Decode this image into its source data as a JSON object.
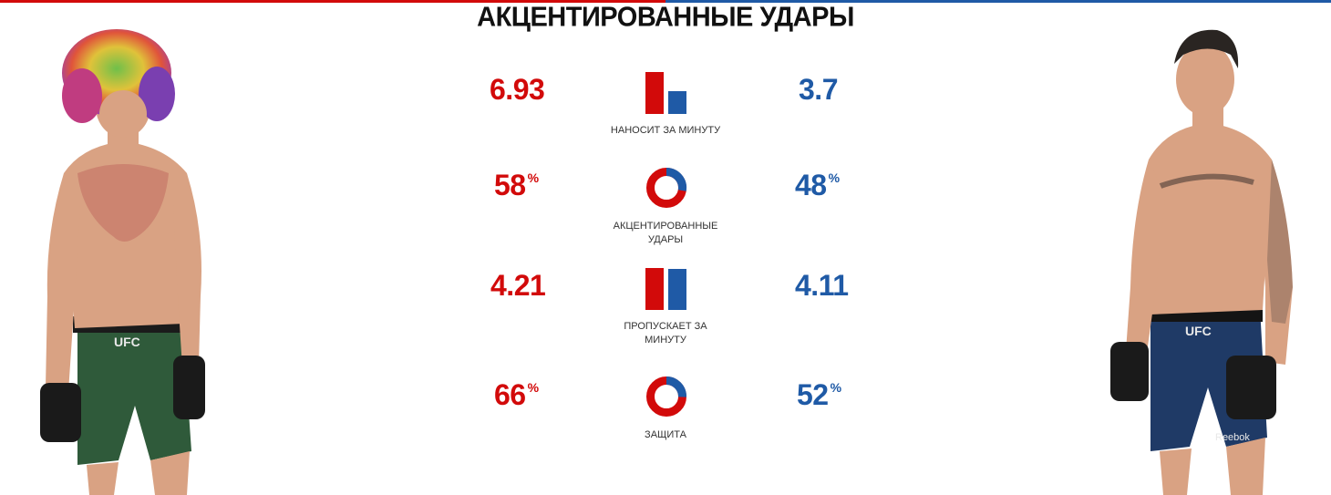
{
  "title": "АКЦЕНТИРОВАННЫЕ УДАРЫ",
  "colors": {
    "red": "#d20a0a",
    "blue": "#1f5aa6"
  },
  "stats": [
    {
      "label": "НАНОСИТ ЗА МИНУТУ",
      "red": "6.93",
      "blue": "3.7",
      "unit": "",
      "icon": "bar-compare-icon"
    },
    {
      "label": "АКЦЕНТИРОВАННЫЕ УДАРЫ",
      "red": "58",
      "blue": "48",
      "unit": "%",
      "icon": "donut-compare-icon"
    },
    {
      "label": "ПРОПУСКАЕТ ЗА МИНУТУ",
      "red": "4.21",
      "blue": "4.11",
      "unit": "",
      "icon": "bar-compare-icon"
    },
    {
      "label": "ЗАЩИТА",
      "red": "66",
      "blue": "52",
      "unit": "%",
      "icon": "donut-compare-icon"
    }
  ],
  "fighters": {
    "red": {
      "logo": "UFC"
    },
    "blue": {
      "logo": "UFC",
      "sponsor": "Reebok"
    }
  }
}
